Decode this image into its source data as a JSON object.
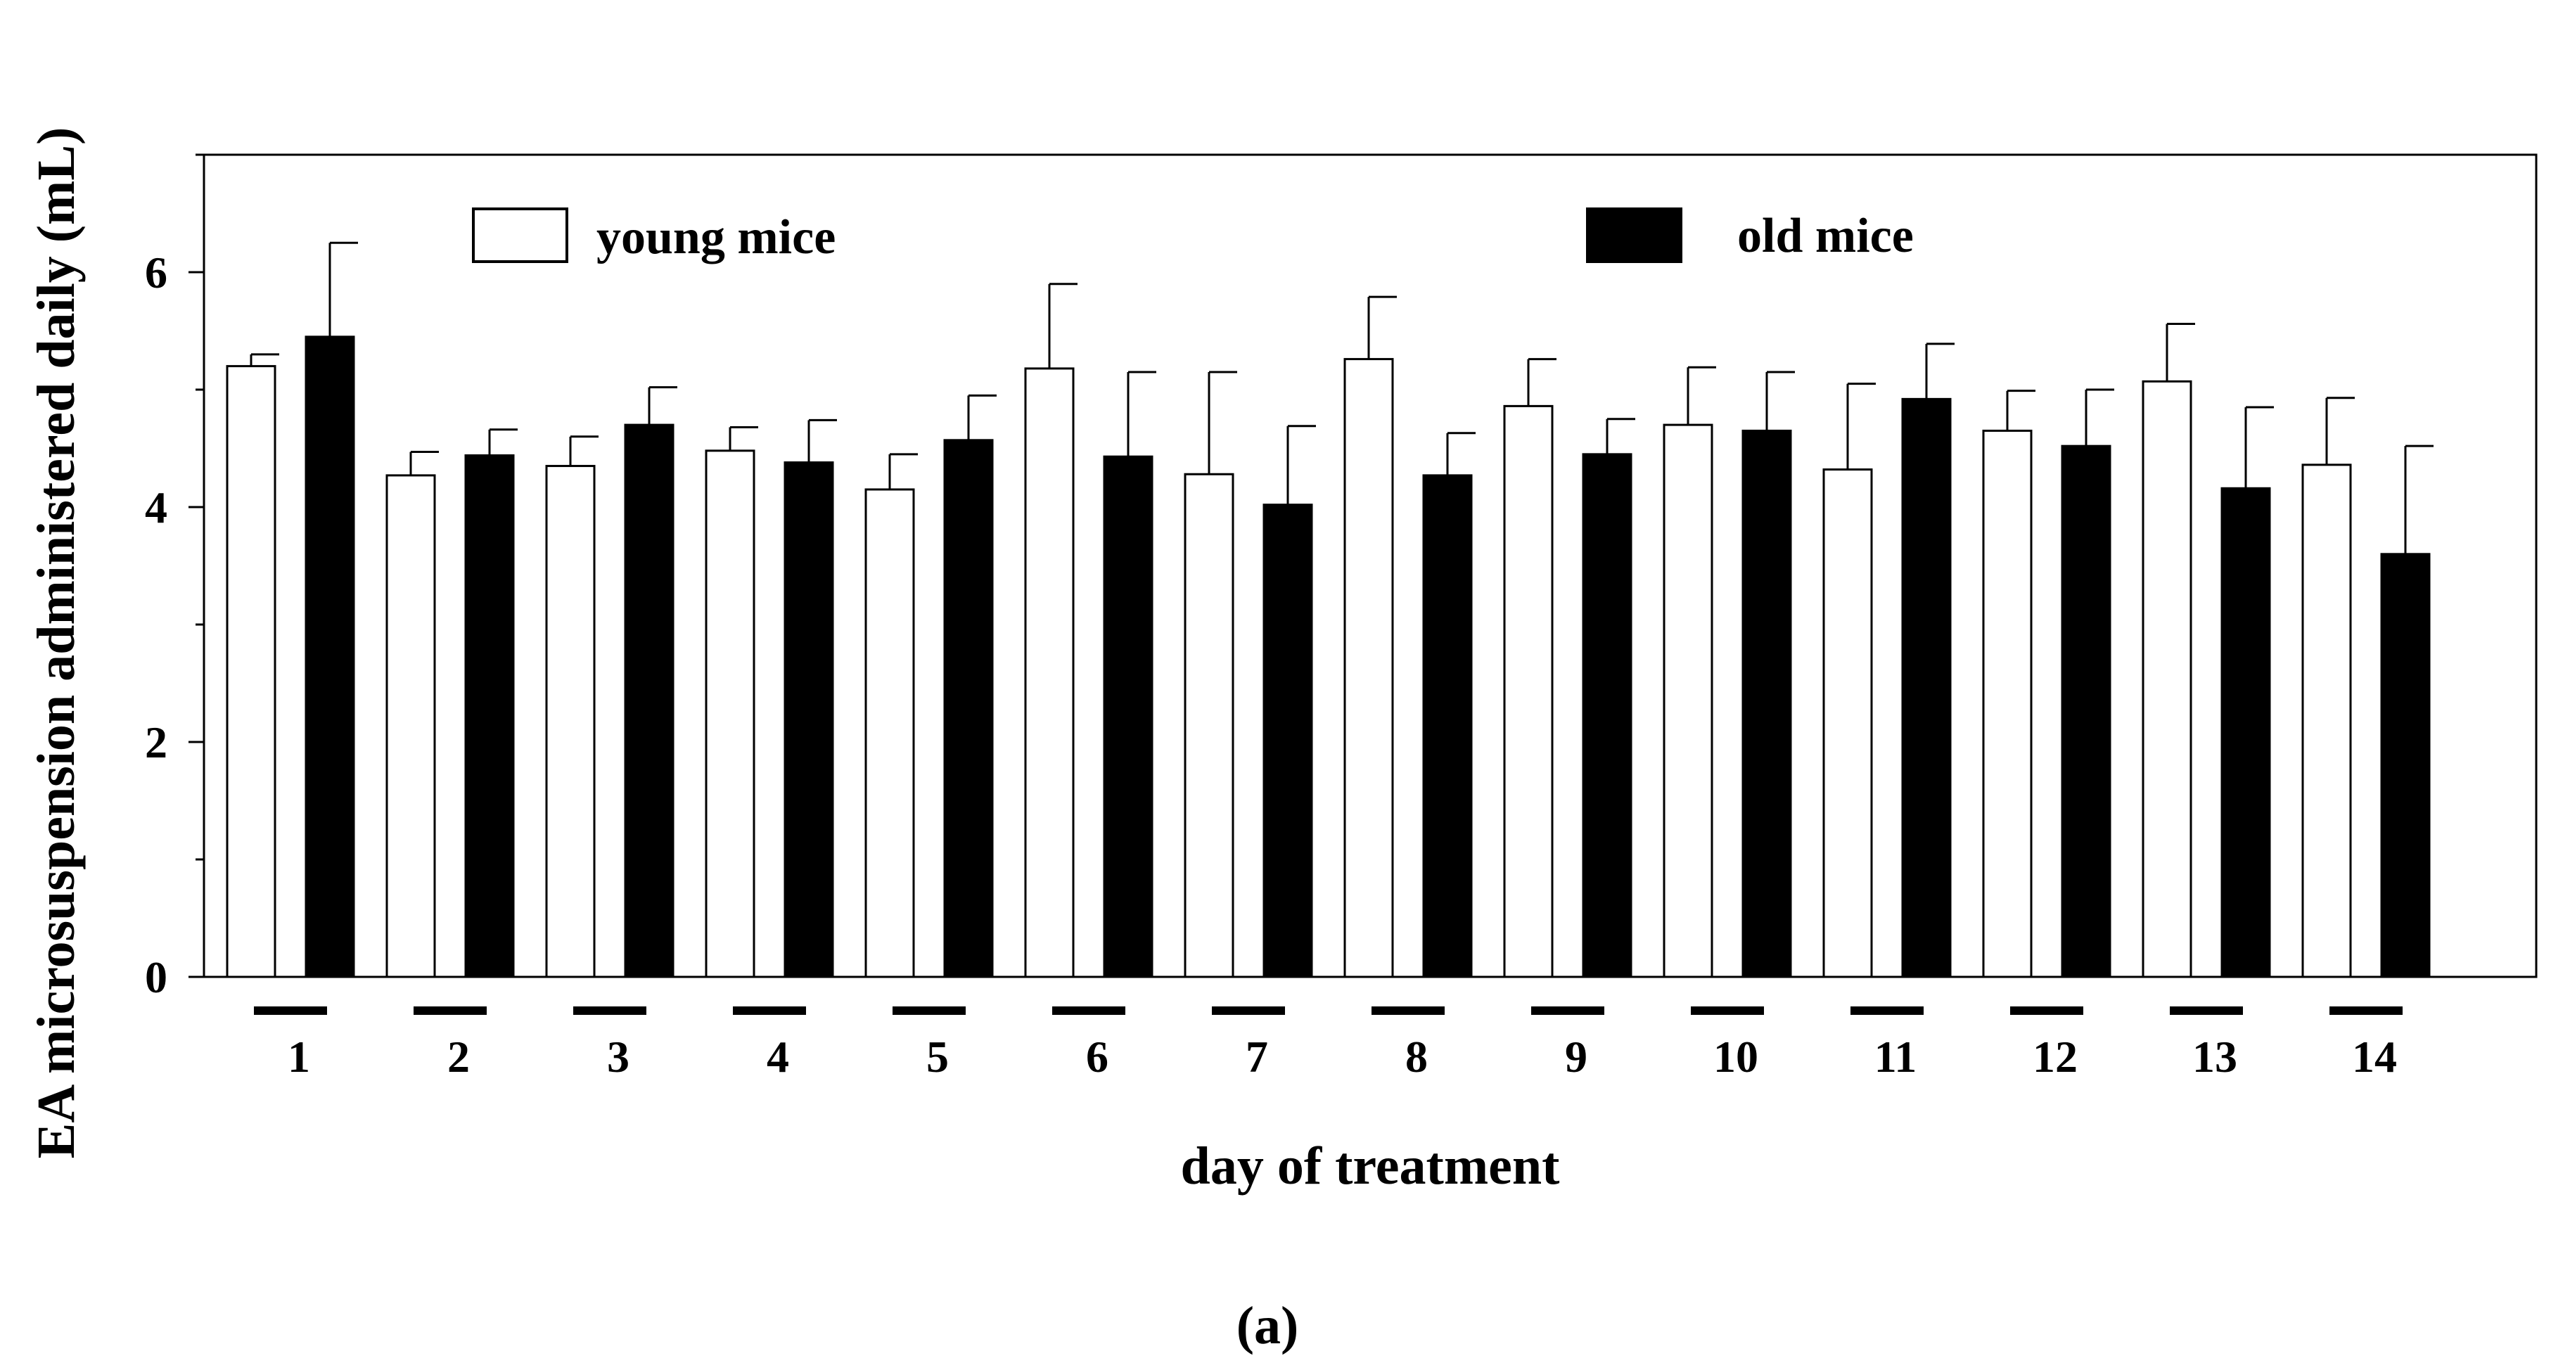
{
  "chart_data": {
    "type": "bar",
    "title": "",
    "xlabel": "day of treatment",
    "ylabel": "EA microsuspension administered daily (mL)",
    "panel_label": "(a)",
    "ylim": [
      0,
      7
    ],
    "yticks": [
      0,
      2,
      4,
      6
    ],
    "yticks_minor": [
      1,
      3,
      5,
      7
    ],
    "categories": [
      "1",
      "2",
      "3",
      "4",
      "5",
      "6",
      "7",
      "8",
      "9",
      "10",
      "11",
      "12",
      "13",
      "14"
    ],
    "series": [
      {
        "name": "young mice",
        "fill": "#ffffff",
        "values": [
          5.2,
          4.27,
          4.35,
          4.48,
          4.15,
          5.18,
          4.28,
          5.26,
          4.86,
          4.7,
          4.32,
          4.65,
          5.07,
          4.36
        ],
        "errors": [
          0.1,
          0.2,
          0.25,
          0.2,
          0.3,
          0.72,
          0.87,
          0.53,
          0.4,
          0.49,
          0.73,
          0.34,
          0.49,
          0.57
        ]
      },
      {
        "name": "old mice",
        "fill": "#000000",
        "values": [
          5.45,
          4.44,
          4.7,
          4.38,
          4.57,
          4.43,
          4.02,
          4.27,
          4.45,
          4.65,
          4.92,
          4.52,
          4.16,
          3.6
        ],
        "errors": [
          0.8,
          0.22,
          0.32,
          0.36,
          0.38,
          0.72,
          0.67,
          0.36,
          0.3,
          0.5,
          0.47,
          0.48,
          0.69,
          0.92
        ]
      }
    ],
    "grid": false,
    "legend": {
      "placement": "top",
      "entries": [
        "young mice",
        "old mice"
      ]
    },
    "colors": {
      "young": "#ffffff",
      "old": "#000000",
      "stroke": "#000000"
    }
  }
}
